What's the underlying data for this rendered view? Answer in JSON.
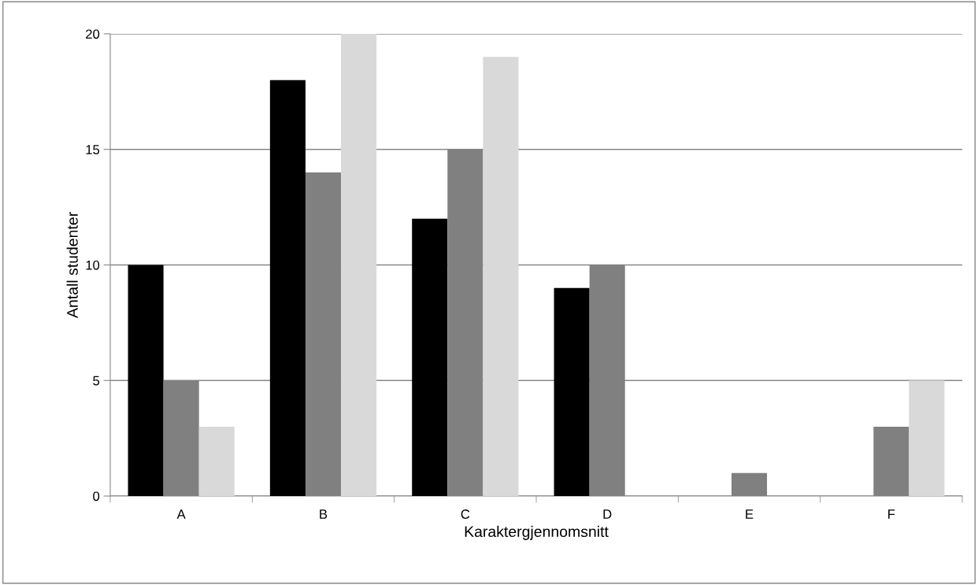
{
  "chart_data": {
    "type": "bar",
    "xlabel": "Karaktergjennomsnitt",
    "ylabel": "Antall studenter",
    "categories": [
      "A",
      "B",
      "C",
      "D",
      "E",
      "F"
    ],
    "series": [
      {
        "color": "#000000",
        "values": [
          10,
          18,
          12,
          9,
          0,
          0
        ]
      },
      {
        "color": "#808080",
        "values": [
          5,
          14,
          15,
          10,
          1,
          3
        ]
      },
      {
        "color": "#d9d9d9",
        "values": [
          3,
          20,
          19,
          0,
          0,
          5
        ]
      }
    ],
    "ylim": [
      0,
      20
    ],
    "yticks": [
      0,
      5,
      10,
      15,
      20
    ],
    "grid": "y",
    "legend": false
  }
}
